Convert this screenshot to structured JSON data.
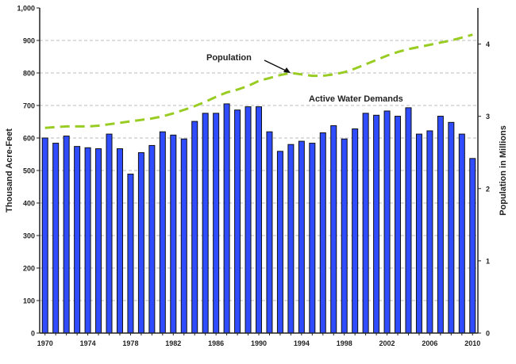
{
  "chart_data": {
    "type": "bar",
    "xlabel": "",
    "ylabel": "Thousand Acre-Feet",
    "y2label": "Population in Millions",
    "ylim": [
      0,
      1000
    ],
    "y2lim": [
      0,
      4.5
    ],
    "yticks": [
      "0",
      "100",
      "200",
      "300",
      "400",
      "500",
      "600",
      "700",
      "800",
      "900",
      "1,000"
    ],
    "y2ticks": [
      "0",
      "1",
      "2",
      "3",
      "4"
    ],
    "xtick_labels": [
      "1970",
      "1974",
      "1978",
      "1982",
      "1986",
      "1990",
      "1994",
      "1998",
      "2002",
      "2006",
      "2010"
    ],
    "grid": true,
    "categories": [
      1970,
      1971,
      1972,
      1973,
      1974,
      1975,
      1976,
      1977,
      1978,
      1979,
      1980,
      1981,
      1982,
      1983,
      1984,
      1985,
      1986,
      1987,
      1988,
      1989,
      1990,
      1991,
      1992,
      1993,
      1994,
      1995,
      1996,
      1997,
      1998,
      1999,
      2000,
      2001,
      2002,
      2003,
      2004,
      2005,
      2006,
      2007,
      2008,
      2009,
      2010
    ],
    "series": [
      {
        "name": "Active Water Demands",
        "type": "bar",
        "axis": "left",
        "color": "#2f4cff",
        "values": [
          600,
          584,
          606,
          574,
          570,
          567,
          612,
          567,
          489,
          555,
          577,
          619,
          609,
          597,
          651,
          676,
          676,
          705,
          686,
          696,
          696,
          619,
          559,
          580,
          590,
          584,
          616,
          638,
          597,
          628,
          676,
          670,
          683,
          667,
          693,
          612,
          622,
          667,
          648,
          612,
          537
        ]
      },
      {
        "name": "Population",
        "type": "line",
        "axis": "right",
        "color": "#99cc22",
        "dashed": true,
        "values": [
          2.84,
          2.85,
          2.86,
          2.86,
          2.86,
          2.87,
          2.89,
          2.91,
          2.93,
          2.95,
          2.97,
          3.0,
          3.04,
          3.09,
          3.14,
          3.2,
          3.27,
          3.33,
          3.37,
          3.42,
          3.49,
          3.53,
          3.57,
          3.6,
          3.58,
          3.56,
          3.56,
          3.58,
          3.61,
          3.66,
          3.72,
          3.78,
          3.84,
          3.89,
          3.93,
          3.96,
          3.99,
          4.02,
          4.05,
          4.09,
          4.13
        ]
      }
    ],
    "annotations": [
      "Population",
      "Active Water Demands"
    ]
  }
}
